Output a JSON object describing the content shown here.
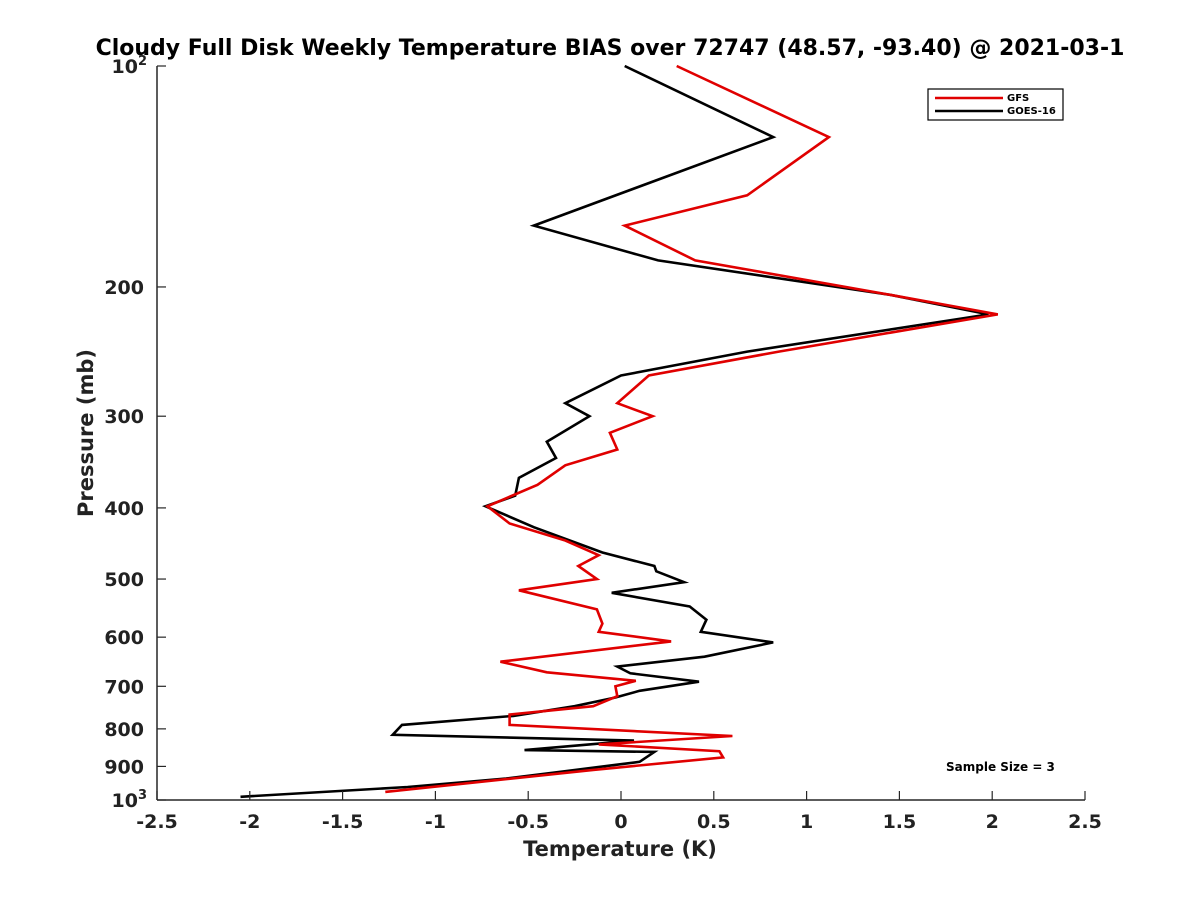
{
  "chart_data": {
    "type": "line",
    "title": "Cloudy Full Disk Weekly Temperature BIAS over 72747 (48.57, -93.40) @ 2021-03-1",
    "xlabel": "Temperature (K)",
    "ylabel": "Pressure (mb)",
    "xlim": [
      -2.5,
      2.5
    ],
    "ylim": [
      100,
      1000
    ],
    "y_scale": "log",
    "y_reversed": true,
    "grid": false,
    "legend_position": "top-right",
    "x_ticks": [
      {
        "value": -2.5,
        "label": "-2.5"
      },
      {
        "value": -2,
        "label": "-2"
      },
      {
        "value": -1.5,
        "label": "-1.5"
      },
      {
        "value": -1,
        "label": "-1"
      },
      {
        "value": -0.5,
        "label": "-0.5"
      },
      {
        "value": 0,
        "label": "0"
      },
      {
        "value": 0.5,
        "label": "0.5"
      },
      {
        "value": 1,
        "label": "1"
      },
      {
        "value": 1.5,
        "label": "1.5"
      },
      {
        "value": 2,
        "label": "2"
      },
      {
        "value": 2.5,
        "label": "2.5"
      }
    ],
    "y_ticks": [
      {
        "value": 100,
        "label": "10",
        "sup": "2"
      },
      {
        "value": 200,
        "label": "200"
      },
      {
        "value": 300,
        "label": "300"
      },
      {
        "value": 400,
        "label": "400"
      },
      {
        "value": 500,
        "label": "500"
      },
      {
        "value": 600,
        "label": "600"
      },
      {
        "value": 700,
        "label": "700"
      },
      {
        "value": 800,
        "label": "800"
      },
      {
        "value": 900,
        "label": "900"
      },
      {
        "value": 1000,
        "label": "10",
        "sup": "3"
      }
    ],
    "series": [
      {
        "name": "GFS",
        "color": "#e00000",
        "points": [
          [
            0.3,
            100
          ],
          [
            1.12,
            125
          ],
          [
            0.68,
            150
          ],
          [
            0.02,
            165
          ],
          [
            0.4,
            184
          ],
          [
            1.45,
            205
          ],
          [
            2.03,
            218
          ],
          [
            0.85,
            245
          ],
          [
            0.15,
            264
          ],
          [
            -0.02,
            288
          ],
          [
            0.17,
            300
          ],
          [
            -0.06,
            316
          ],
          [
            -0.02,
            333
          ],
          [
            -0.3,
            350
          ],
          [
            -0.45,
            372
          ],
          [
            -0.72,
            398
          ],
          [
            -0.6,
            420
          ],
          [
            -0.3,
            443
          ],
          [
            -0.12,
            464
          ],
          [
            -0.23,
            480
          ],
          [
            -0.13,
            500
          ],
          [
            -0.55,
            518
          ],
          [
            -0.13,
            550
          ],
          [
            -0.1,
            575
          ],
          [
            -0.12,
            590
          ],
          [
            0.27,
            608
          ],
          [
            -0.65,
            648
          ],
          [
            -0.4,
            670
          ],
          [
            0.08,
            688
          ],
          [
            -0.03,
            700
          ],
          [
            -0.02,
            722
          ],
          [
            -0.15,
            745
          ],
          [
            -0.6,
            765
          ],
          [
            -0.6,
            790
          ],
          [
            0.6,
            818
          ],
          [
            -0.12,
            840
          ],
          [
            0.53,
            858
          ],
          [
            0.55,
            875
          ],
          [
            -0.15,
            910
          ],
          [
            -1.27,
            975
          ]
        ]
      },
      {
        "name": "GOES-16",
        "color": "#000000",
        "points": [
          [
            0.02,
            100
          ],
          [
            0.82,
            125
          ],
          [
            -0.47,
            165
          ],
          [
            0.2,
            184
          ],
          [
            1.45,
            205
          ],
          [
            1.98,
            218
          ],
          [
            0.68,
            245
          ],
          [
            0.0,
            264
          ],
          [
            -0.3,
            288
          ],
          [
            -0.17,
            300
          ],
          [
            -0.4,
            325
          ],
          [
            -0.35,
            342
          ],
          [
            -0.55,
            364
          ],
          [
            -0.57,
            385
          ],
          [
            -0.73,
            398
          ],
          [
            -0.47,
            425
          ],
          [
            -0.1,
            460
          ],
          [
            0.18,
            480
          ],
          [
            0.19,
            488
          ],
          [
            0.34,
            505
          ],
          [
            -0.05,
            522
          ],
          [
            0.37,
            545
          ],
          [
            0.46,
            568
          ],
          [
            0.43,
            590
          ],
          [
            0.82,
            610
          ],
          [
            0.45,
            638
          ],
          [
            -0.02,
            658
          ],
          [
            0.05,
            672
          ],
          [
            0.42,
            690
          ],
          [
            0.1,
            710
          ],
          [
            -0.03,
            725
          ],
          [
            -0.25,
            745
          ],
          [
            -0.58,
            768
          ],
          [
            -1.18,
            790
          ],
          [
            -1.23,
            815
          ],
          [
            0.07,
            830
          ],
          [
            -0.52,
            855
          ],
          [
            0.18,
            860
          ],
          [
            0.1,
            887
          ],
          [
            -0.32,
            915
          ],
          [
            -0.62,
            935
          ],
          [
            -1.15,
            960
          ],
          [
            -2.05,
            990
          ]
        ]
      }
    ],
    "annotations": [
      {
        "text": "Sample Size = 3"
      }
    ]
  }
}
